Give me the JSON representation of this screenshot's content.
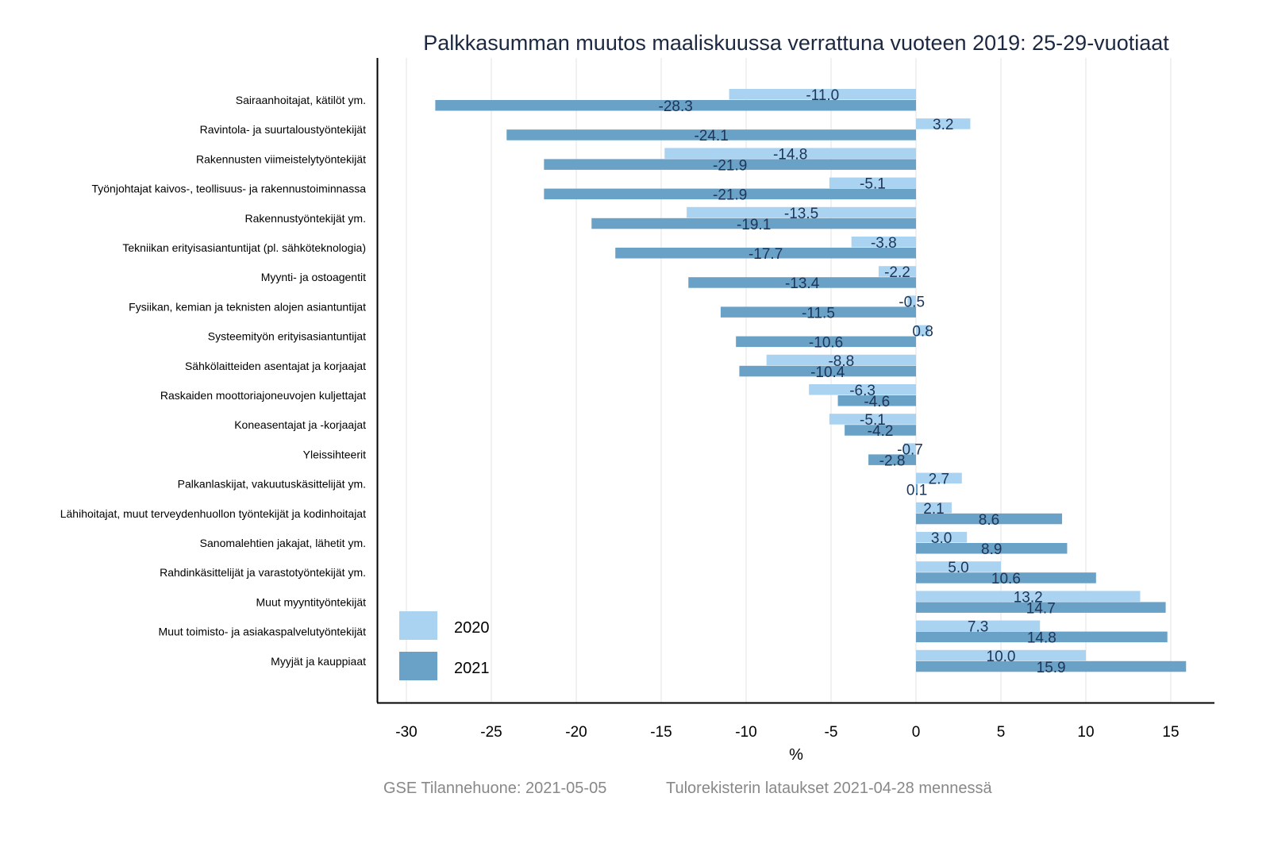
{
  "chart_data": {
    "type": "bar",
    "orientation": "horizontal",
    "title": "Palkkasumman muutos maaliskuussa verrattuna vuoteen 2019: 25-29-vuotiaat",
    "xlabel": "%",
    "ylabel": "",
    "xlim": [
      -31.7,
      17.5
    ],
    "xticks": [
      -30,
      -25,
      -20,
      -15,
      -10,
      -5,
      0,
      5,
      10,
      15
    ],
    "grid": true,
    "legend_position": "bottom-left",
    "categories": [
      "Sairaanhoitajat, kätilöt ym.",
      "Ravintola- ja suurtaloustyöntekijät",
      "Rakennusten viimeistelytyöntekijät",
      "Työnjohtajat kaivos-, teollisuus- ja rakennustoiminnassa",
      "Rakennustyöntekijät ym.",
      "Tekniikan erityisasiantuntijat (pl. sähköteknologia)",
      "Myynti- ja ostoagentit",
      "Fysiikan, kemian ja teknisten alojen asiantuntijat",
      "Systeemityön erityisasiantuntijat",
      "Sähkölaitteiden asentajat ja korjaajat",
      "Raskaiden moottoriajoneuvojen kuljettajat",
      "Koneasentajat ja -korjaajat",
      "Yleissihteerit",
      "Palkanlaskijat, vakuutuskäsittelijät ym.",
      "Lähihoitajat, muut terveydenhuollon työntekijät ja kodinhoitajat",
      "Sanomalehtien jakajat, lähetit ym.",
      "Rahdinkäsittelijät ja varastotyöntekijät ym.",
      "Muut myyntityöntekijät",
      "Muut toimisto- ja asiakaspalvelutyöntekijät",
      "Myyjät ja kauppiaat"
    ],
    "series": [
      {
        "name": "2020",
        "color": "#a9d3f1",
        "values": [
          -11.0,
          3.2,
          -14.8,
          -5.1,
          -13.5,
          -3.8,
          -2.2,
          -0.5,
          0.8,
          -8.8,
          -6.3,
          -5.1,
          -0.7,
          2.7,
          2.1,
          3.0,
          5.0,
          13.2,
          7.3,
          10.0
        ]
      },
      {
        "name": "2021",
        "color": "#6aa1c6",
        "values": [
          -28.3,
          -24.1,
          -21.9,
          -21.9,
          -19.1,
          -17.7,
          -13.4,
          -11.5,
          -10.6,
          -10.4,
          -4.6,
          -4.2,
          -2.8,
          0.1,
          8.6,
          8.9,
          10.6,
          14.7,
          14.8,
          15.9
        ]
      }
    ],
    "label_color": "#1d3557"
  },
  "footer": {
    "source": "GSE Tilannehuone: 2021-05-05",
    "note": "Tulorekisterin lataukset 2021-04-28 mennessä"
  }
}
